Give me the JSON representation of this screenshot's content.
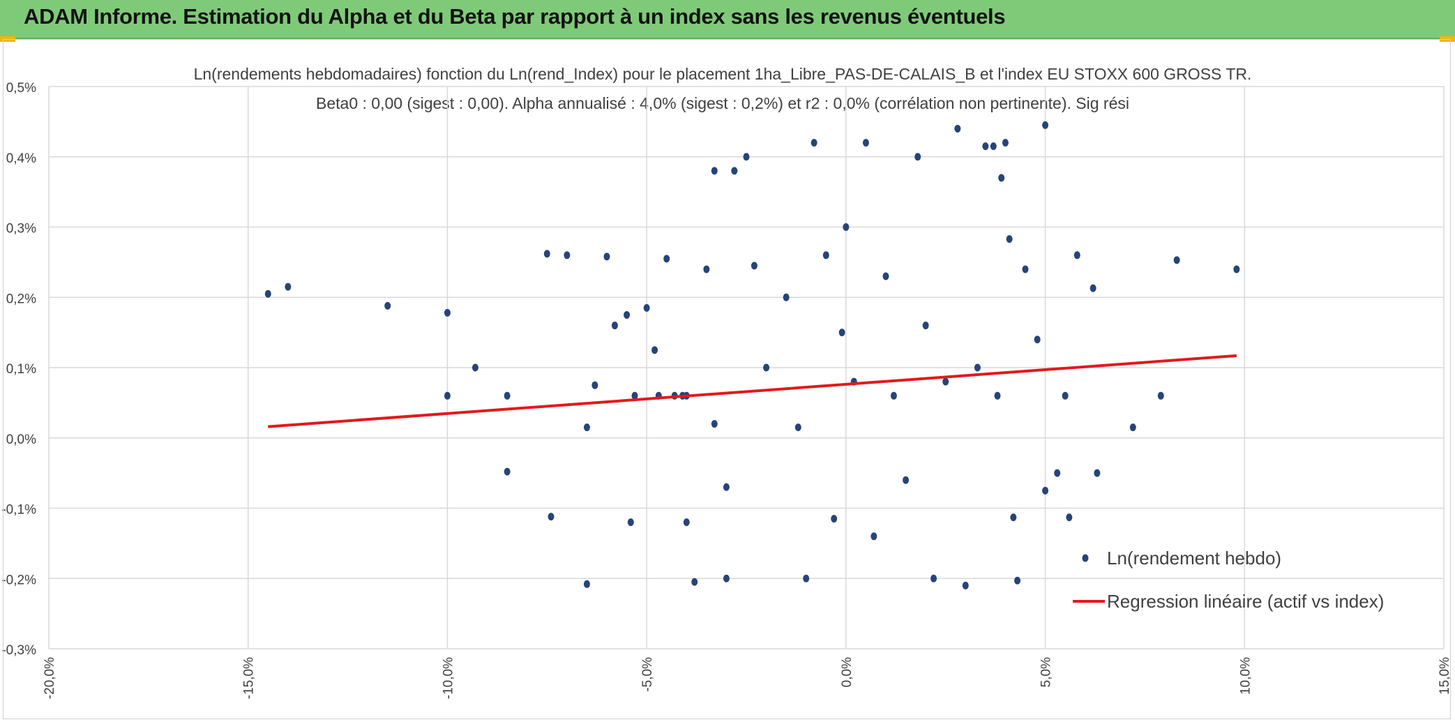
{
  "window": {
    "title": "ADAM Informe. Estimation du Alpha et du Beta par rapport à un index sans les revenus éventuels"
  },
  "chart_data": {
    "type": "scatter",
    "title": "Ln(rendements hebdomadaires) fonction du Ln(rend_Index) pour le placement 1ha_Libre_PAS-DE-CALAIS_B et l'index EU STOXX 600 GROSS TR.",
    "subtitle": "Beta0 : 0,00 (sigest : 0,00). Alpha annualisé : 4,0% (sigest : 0,2%) et r2 : 0,0% (corrélation non pertinente). Sig rési",
    "xlabel": "",
    "ylabel": "",
    "xlim": [
      -0.2,
      0.15
    ],
    "ylim": [
      -0.003,
      0.005
    ],
    "x_ticks": [
      "-20,0%",
      "-15,0%",
      "-10,0%",
      "-5,0%",
      "0,0%",
      "5,0%",
      "10,0%",
      "15,0%"
    ],
    "y_ticks": [
      "0,5%",
      "0,4%",
      "0,3%",
      "0,2%",
      "0,1%",
      "0,0%",
      "-0,1%",
      "-0,2%",
      "-0,3%"
    ],
    "grid": true,
    "legend_position": "bottom-right",
    "series": [
      {
        "name": "Ln(rendement hebdo)",
        "type": "scatter",
        "color": "#264478",
        "points": [
          [
            -0.145,
            0.00205
          ],
          [
            -0.14,
            0.00215
          ],
          [
            -0.115,
            0.00188
          ],
          [
            -0.1,
            0.00178
          ],
          [
            -0.1,
            0.0006
          ],
          [
            -0.093,
            0.001
          ],
          [
            -0.085,
            0.0006
          ],
          [
            -0.085,
            -0.00048
          ],
          [
            -0.075,
            0.00262
          ],
          [
            -0.074,
            -0.00112
          ],
          [
            -0.07,
            0.0026
          ],
          [
            -0.065,
            0.00015
          ],
          [
            -0.065,
            -0.00208
          ],
          [
            -0.063,
            0.00075
          ],
          [
            -0.06,
            0.00258
          ],
          [
            -0.058,
            0.0016
          ],
          [
            -0.055,
            0.00175
          ],
          [
            -0.053,
            0.0006
          ],
          [
            -0.05,
            0.00185
          ],
          [
            -0.048,
            0.00125
          ],
          [
            -0.047,
            0.0006
          ],
          [
            -0.045,
            0.00255
          ],
          [
            -0.043,
            0.0006
          ],
          [
            -0.04,
            0.0006
          ],
          [
            -0.04,
            -0.0012
          ],
          [
            -0.038,
            -0.00205
          ],
          [
            -0.035,
            0.0024
          ],
          [
            -0.033,
            0.0002
          ],
          [
            -0.03,
            -0.0007
          ],
          [
            -0.028,
            0.0038
          ],
          [
            -0.025,
            0.004
          ],
          [
            -0.023,
            0.00245
          ],
          [
            -0.02,
            0.001
          ],
          [
            -0.015,
            0.002
          ],
          [
            -0.012,
            0.00015
          ],
          [
            -0.01,
            -0.002
          ],
          [
            -0.008,
            0.0042
          ],
          [
            -0.005,
            0.0026
          ],
          [
            -0.003,
            -0.00115
          ],
          [
            -0.001,
            0.0015
          ],
          [
            0.0,
            0.003
          ],
          [
            0.002,
            0.0008
          ],
          [
            0.005,
            0.0042
          ],
          [
            0.007,
            -0.0014
          ],
          [
            0.01,
            0.0023
          ],
          [
            0.012,
            0.0006
          ],
          [
            0.015,
            -0.0006
          ],
          [
            0.018,
            0.004
          ],
          [
            0.02,
            0.0016
          ],
          [
            0.022,
            -0.002
          ],
          [
            0.025,
            0.0008
          ],
          [
            0.028,
            0.0044
          ],
          [
            0.03,
            -0.0021
          ],
          [
            0.033,
            0.001
          ],
          [
            0.035,
            0.00415
          ],
          [
            0.038,
            0.0006
          ],
          [
            0.039,
            0.0037
          ],
          [
            0.041,
            0.00283
          ],
          [
            0.043,
            -0.00203
          ],
          [
            0.045,
            0.0024
          ],
          [
            0.048,
            0.0014
          ],
          [
            0.05,
            0.00445
          ],
          [
            0.05,
            -0.00075
          ],
          [
            0.053,
            -0.0005
          ],
          [
            0.055,
            0.0006
          ],
          [
            0.058,
            0.0026
          ],
          [
            0.062,
            0.00213
          ],
          [
            0.063,
            -0.0005
          ],
          [
            0.072,
            0.00015
          ],
          [
            0.079,
            0.0006
          ],
          [
            0.083,
            0.00253
          ],
          [
            0.098,
            0.0024
          ],
          [
            -0.03,
            -0.002
          ],
          [
            0.042,
            -0.00113
          ],
          [
            0.056,
            -0.00113
          ],
          [
            -0.033,
            0.0038
          ],
          [
            0.04,
            0.0042
          ],
          [
            0.037,
            0.00415
          ],
          [
            -0.041,
            0.0006
          ],
          [
            -0.054,
            -0.0012
          ]
        ]
      },
      {
        "name": "Regression linéaire (actif vs index)",
        "type": "line",
        "color": "#e3191c",
        "points": [
          [
            -0.145,
            0.00016
          ],
          [
            0.098,
            0.00117
          ]
        ]
      }
    ]
  }
}
